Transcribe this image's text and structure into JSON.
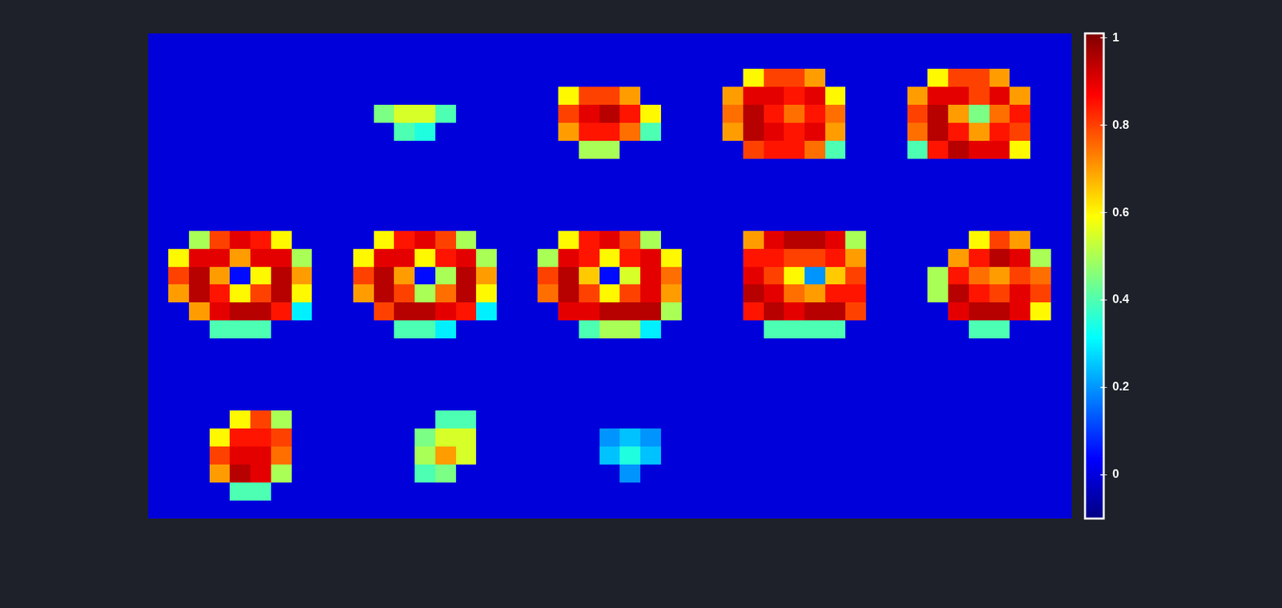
{
  "chart_data": {
    "type": "heatmap",
    "tick_labels": false,
    "colorbar": {
      "range": [
        -0.1,
        1.01
      ],
      "ticks": [
        0,
        0.2,
        0.4,
        0.6,
        0.8,
        1
      ]
    },
    "cells": [
      [
        0,
        0,
        0,
        0,
        0,
        0,
        0,
        0,
        0,
        0,
        0,
        0,
        0,
        0,
        0,
        0,
        0,
        0,
        0,
        0,
        0,
        0,
        0,
        0,
        0,
        0,
        0,
        0,
        0,
        0,
        0,
        0,
        0,
        0,
        0,
        0,
        0,
        0,
        0,
        0,
        0,
        0,
        0,
        0,
        0
      ],
      [
        0,
        0,
        0,
        0,
        0,
        0,
        0,
        0,
        0,
        0,
        0,
        0,
        0,
        0,
        0,
        0,
        0,
        0,
        0,
        0,
        0,
        0,
        0,
        0,
        0,
        0,
        0,
        0,
        0,
        0,
        0,
        0,
        0,
        0,
        0,
        0,
        0,
        0,
        0,
        0,
        0,
        0,
        0,
        0,
        0
      ],
      [
        0,
        0,
        0,
        0,
        0,
        0,
        0,
        0,
        0,
        0,
        0,
        0,
        0,
        0,
        0,
        0,
        0,
        0,
        0,
        0,
        0,
        0,
        0,
        0,
        0,
        0,
        0,
        0,
        0,
        0.6,
        0.8,
        0.8,
        0.7,
        0,
        0,
        0,
        0,
        0,
        0.6,
        0.8,
        0.8,
        0.7,
        0,
        0,
        0
      ],
      [
        0,
        0,
        0,
        0,
        0,
        0,
        0,
        0,
        0,
        0,
        0,
        0,
        0,
        0,
        0,
        0,
        0,
        0,
        0,
        0,
        0.6,
        0.8,
        0.8,
        0.7,
        0,
        0,
        0,
        0,
        0.7,
        0.9,
        0.9,
        0.85,
        0.9,
        0.6,
        0,
        0,
        0,
        0.7,
        0.9,
        0.9,
        0.8,
        0.9,
        0.7,
        0,
        0
      ],
      [
        0,
        0,
        0,
        0,
        0,
        0,
        0,
        0,
        0,
        0,
        0,
        0.45,
        0.55,
        0.55,
        0.4,
        0,
        0,
        0,
        0,
        0,
        0.8,
        0.9,
        0.95,
        0.85,
        0.6,
        0,
        0,
        0,
        0.75,
        0.95,
        0.85,
        0.75,
        0.85,
        0.75,
        0,
        0,
        0,
        0.8,
        0.95,
        0.7,
        0.45,
        0.75,
        0.85,
        0,
        0
      ],
      [
        0,
        0,
        0,
        0,
        0,
        0,
        0,
        0,
        0,
        0,
        0,
        0,
        0.4,
        0.35,
        0,
        0,
        0,
        0,
        0,
        0,
        0.7,
        0.85,
        0.85,
        0.75,
        0.4,
        0,
        0,
        0,
        0.7,
        0.95,
        0.9,
        0.85,
        0.9,
        0.7,
        0,
        0,
        0,
        0.75,
        0.95,
        0.85,
        0.7,
        0.85,
        0.8,
        0,
        0
      ],
      [
        0,
        0,
        0,
        0,
        0,
        0,
        0,
        0,
        0,
        0,
        0,
        0,
        0,
        0,
        0,
        0,
        0,
        0,
        0,
        0,
        0,
        0.5,
        0.5,
        0,
        0,
        0,
        0,
        0,
        0,
        0.8,
        0.85,
        0.85,
        0.75,
        0.4,
        0,
        0,
        0,
        0.4,
        0.85,
        0.95,
        0.9,
        0.9,
        0.6,
        0,
        0
      ],
      [
        0,
        0,
        0,
        0,
        0,
        0,
        0,
        0,
        0,
        0,
        0,
        0,
        0,
        0,
        0,
        0,
        0,
        0,
        0,
        0,
        0,
        0,
        0,
        0,
        0,
        0,
        0,
        0,
        0,
        0,
        0,
        0,
        0,
        0,
        0,
        0,
        0,
        0,
        0,
        0,
        0,
        0,
        0,
        0,
        0
      ],
      [
        0,
        0,
        0,
        0,
        0,
        0,
        0,
        0,
        0,
        0,
        0,
        0,
        0,
        0,
        0,
        0,
        0,
        0,
        0,
        0,
        0,
        0,
        0,
        0,
        0,
        0,
        0,
        0,
        0,
        0,
        0,
        0,
        0,
        0,
        0,
        0,
        0,
        0,
        0,
        0,
        0,
        0,
        0,
        0,
        0
      ],
      [
        0,
        0,
        0,
        0,
        0,
        0,
        0,
        0,
        0,
        0,
        0,
        0,
        0,
        0,
        0,
        0,
        0,
        0,
        0,
        0,
        0,
        0,
        0,
        0,
        0,
        0,
        0,
        0,
        0,
        0,
        0,
        0,
        0,
        0,
        0,
        0,
        0,
        0,
        0,
        0,
        0,
        0,
        0,
        0,
        0
      ],
      [
        0,
        0,
        0,
        0,
        0,
        0,
        0,
        0,
        0,
        0,
        0,
        0,
        0,
        0,
        0,
        0,
        0,
        0,
        0,
        0,
        0,
        0,
        0,
        0,
        0,
        0,
        0,
        0,
        0,
        0,
        0,
        0,
        0,
        0,
        0,
        0,
        0,
        0,
        0,
        0,
        0,
        0,
        0,
        0,
        0
      ],
      [
        0,
        0,
        0.5,
        0.8,
        0.9,
        0.85,
        0.6,
        0,
        0,
        0,
        0,
        0.6,
        0.85,
        0.9,
        0.8,
        0.5,
        0,
        0,
        0,
        0,
        0.6,
        0.85,
        0.9,
        0.8,
        0.5,
        0,
        0,
        0,
        0,
        0.7,
        0.9,
        0.95,
        0.95,
        0.9,
        0.5,
        0,
        0,
        0,
        0,
        0,
        0.6,
        0.8,
        0.7,
        0,
        0
      ],
      [
        0,
        0.6,
        0.9,
        0.9,
        0.7,
        0.9,
        0.9,
        0.5,
        0,
        0,
        0.6,
        0.9,
        0.9,
        0.6,
        0.85,
        0.9,
        0.5,
        0,
        0,
        0.5,
        0.9,
        0.85,
        0.6,
        0.85,
        0.9,
        0.6,
        0,
        0,
        0,
        0.85,
        0.85,
        0.8,
        0.8,
        0.85,
        0.7,
        0,
        0,
        0,
        0,
        0.7,
        0.85,
        0.95,
        0.9,
        0.5,
        0
      ],
      [
        0,
        0.8,
        0.95,
        0.7,
        0.05,
        0.6,
        0.95,
        0.7,
        0,
        0,
        0.8,
        0.95,
        0.7,
        0.05,
        0.5,
        0.95,
        0.7,
        0,
        0,
        0.8,
        0.95,
        0.65,
        0.05,
        0.55,
        0.9,
        0.75,
        0,
        0,
        0,
        0.9,
        0.8,
        0.6,
        0.2,
        0.65,
        0.8,
        0,
        0,
        0,
        0.5,
        0.85,
        0.75,
        0.7,
        0.8,
        0.75,
        0
      ],
      [
        0,
        0.7,
        0.95,
        0.85,
        0.6,
        0.8,
        0.95,
        0.6,
        0,
        0,
        0.7,
        0.95,
        0.8,
        0.5,
        0.75,
        0.95,
        0.6,
        0,
        0,
        0.75,
        0.95,
        0.8,
        0.6,
        0.8,
        0.9,
        0.7,
        0,
        0,
        0,
        0.95,
        0.9,
        0.75,
        0.7,
        0.85,
        0.85,
        0,
        0,
        0,
        0.5,
        0.95,
        0.85,
        0.8,
        0.9,
        0.8,
        0
      ],
      [
        0,
        0,
        0.7,
        0.9,
        0.95,
        0.95,
        0.85,
        0.3,
        0,
        0,
        0,
        0.8,
        0.95,
        0.95,
        0.9,
        0.85,
        0.3,
        0,
        0,
        0,
        0.9,
        0.9,
        0.95,
        0.95,
        0.95,
        0.5,
        0,
        0,
        0,
        0.85,
        0.95,
        0.9,
        0.95,
        0.95,
        0.8,
        0,
        0,
        0,
        0,
        0.9,
        0.95,
        0.95,
        0.9,
        0.6,
        0
      ],
      [
        0,
        0,
        0,
        0.4,
        0.4,
        0.4,
        0,
        0,
        0,
        0,
        0,
        0,
        0.4,
        0.4,
        0.3,
        0,
        0,
        0,
        0,
        0,
        0,
        0.4,
        0.5,
        0.5,
        0.3,
        0,
        0,
        0,
        0,
        0,
        0.4,
        0.4,
        0.4,
        0.4,
        0,
        0,
        0,
        0,
        0,
        0,
        0.4,
        0.4,
        0,
        0,
        0
      ],
      [
        0,
        0,
        0,
        0,
        0,
        0,
        0,
        0,
        0,
        0,
        0,
        0,
        0,
        0,
        0,
        0,
        0,
        0,
        0,
        0,
        0,
        0,
        0,
        0,
        0,
        0,
        0,
        0,
        0,
        0,
        0,
        0,
        0,
        0,
        0,
        0,
        0,
        0,
        0,
        0,
        0,
        0,
        0,
        0,
        0
      ],
      [
        0,
        0,
        0,
        0,
        0,
        0,
        0,
        0,
        0,
        0,
        0,
        0,
        0,
        0,
        0,
        0,
        0,
        0,
        0,
        0,
        0,
        0,
        0,
        0,
        0,
        0,
        0,
        0,
        0,
        0,
        0,
        0,
        0,
        0,
        0,
        0,
        0,
        0,
        0,
        0,
        0,
        0,
        0,
        0,
        0
      ],
      [
        0,
        0,
        0,
        0,
        0,
        0,
        0,
        0,
        0,
        0,
        0,
        0,
        0,
        0,
        0,
        0,
        0,
        0,
        0,
        0,
        0,
        0,
        0,
        0,
        0,
        0,
        0,
        0,
        0,
        0,
        0,
        0,
        0,
        0,
        0,
        0,
        0,
        0,
        0,
        0,
        0,
        0,
        0,
        0,
        0
      ],
      [
        0,
        0,
        0,
        0,
        0,
        0,
        0,
        0,
        0,
        0,
        0,
        0,
        0,
        0,
        0,
        0,
        0,
        0,
        0,
        0,
        0,
        0,
        0,
        0,
        0,
        0,
        0,
        0,
        0,
        0,
        0,
        0,
        0,
        0,
        0,
        0,
        0,
        0,
        0,
        0,
        0,
        0,
        0,
        0,
        0
      ],
      [
        0,
        0,
        0,
        0,
        0.6,
        0.8,
        0.5,
        0,
        0,
        0,
        0,
        0,
        0,
        0,
        0.4,
        0.4,
        0,
        0,
        0,
        0,
        0,
        0,
        0,
        0,
        0,
        0,
        0,
        0,
        0,
        0,
        0,
        0,
        0,
        0,
        0,
        0,
        0,
        0,
        0,
        0,
        0,
        0,
        0,
        0,
        0
      ],
      [
        0,
        0,
        0,
        0.6,
        0.85,
        0.85,
        0.8,
        0,
        0,
        0,
        0,
        0,
        0,
        0.45,
        0.55,
        0.55,
        0,
        0,
        0,
        0,
        0,
        0,
        0.2,
        0.25,
        0.2,
        0,
        0,
        0,
        0,
        0,
        0,
        0,
        0,
        0,
        0,
        0,
        0,
        0,
        0,
        0,
        0,
        0,
        0,
        0,
        0
      ],
      [
        0,
        0,
        0,
        0.8,
        0.9,
        0.9,
        0.75,
        0,
        0,
        0,
        0,
        0,
        0,
        0.5,
        0.7,
        0.55,
        0,
        0,
        0,
        0,
        0,
        0,
        0.25,
        0.35,
        0.25,
        0,
        0,
        0,
        0,
        0,
        0,
        0,
        0,
        0,
        0,
        0,
        0,
        0,
        0,
        0,
        0,
        0,
        0,
        0,
        0
      ],
      [
        0,
        0,
        0,
        0.7,
        0.95,
        0.9,
        0.5,
        0,
        0,
        0,
        0,
        0,
        0,
        0.4,
        0.45,
        0,
        0,
        0,
        0,
        0,
        0,
        0,
        0,
        0.2,
        0,
        0,
        0,
        0,
        0,
        0,
        0,
        0,
        0,
        0,
        0,
        0,
        0,
        0,
        0,
        0,
        0,
        0,
        0,
        0,
        0
      ],
      [
        0,
        0,
        0,
        0,
        0.4,
        0.4,
        0,
        0,
        0,
        0,
        0,
        0,
        0,
        0,
        0,
        0,
        0,
        0,
        0,
        0,
        0,
        0,
        0,
        0,
        0,
        0,
        0,
        0,
        0,
        0,
        0,
        0,
        0,
        0,
        0,
        0,
        0,
        0,
        0,
        0,
        0,
        0,
        0,
        0,
        0
      ],
      [
        0,
        0,
        0,
        0,
        0,
        0,
        0,
        0,
        0,
        0,
        0,
        0,
        0,
        0,
        0,
        0,
        0,
        0,
        0,
        0,
        0,
        0,
        0,
        0,
        0,
        0,
        0,
        0,
        0,
        0,
        0,
        0,
        0,
        0,
        0,
        0,
        0,
        0,
        0,
        0,
        0,
        0,
        0,
        0,
        0
      ]
    ]
  }
}
